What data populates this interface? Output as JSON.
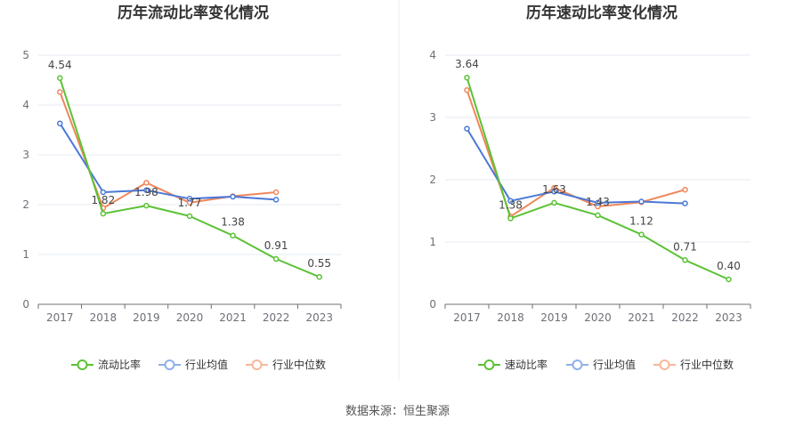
{
  "source": "数据来源：恒生聚源",
  "colors": {
    "company": "#5bc236",
    "avg": "#4b78d8",
    "median": "#f0875a",
    "legend_avg": "#8fb0ea",
    "legend_median": "#f6b79a",
    "grid": "#e6e9f0",
    "axis": "#6e7079",
    "divider": "#eeeeee"
  },
  "chart_data": [
    {
      "type": "line",
      "title": "历年流动比率变化情况",
      "categories": [
        "2017",
        "2018",
        "2019",
        "2020",
        "2021",
        "2022",
        "2023"
      ],
      "yticks": [
        "0",
        "1",
        "2",
        "3",
        "4",
        "5"
      ],
      "ylim": [
        0,
        5
      ],
      "grid": true,
      "legend_position": "bottom",
      "series": [
        {
          "name": "流动比率",
          "values": [
            4.54,
            1.82,
            1.98,
            1.77,
            1.38,
            0.91,
            0.55
          ],
          "labels": [
            "4.54",
            "1.82",
            "1.98",
            "1.77",
            "1.38",
            "0.91",
            "0.55"
          ]
        },
        {
          "name": "行业均值",
          "values": [
            3.63,
            2.25,
            2.29,
            2.12,
            2.16,
            2.1,
            null
          ]
        },
        {
          "name": "行业中位数",
          "values": [
            4.26,
            1.93,
            2.44,
            2.04,
            2.17,
            2.25,
            null
          ]
        }
      ]
    },
    {
      "type": "line",
      "title": "历年速动比率变化情况",
      "categories": [
        "2017",
        "2018",
        "2019",
        "2020",
        "2021",
        "2022",
        "2023"
      ],
      "yticks": [
        "0",
        "1",
        "2",
        "3",
        "4"
      ],
      "ylim": [
        0,
        4
      ],
      "grid": true,
      "legend_position": "bottom",
      "series": [
        {
          "name": "速动比率",
          "values": [
            3.64,
            1.38,
            1.63,
            1.43,
            1.12,
            0.71,
            0.4
          ],
          "labels": [
            "3.64",
            "1.38",
            "1.63",
            "1.43",
            "1.12",
            "0.71",
            "0.40"
          ]
        },
        {
          "name": "行业均值",
          "values": [
            2.82,
            1.66,
            1.81,
            1.63,
            1.65,
            1.62,
            null
          ]
        },
        {
          "name": "行业中位数",
          "values": [
            3.44,
            1.41,
            1.87,
            1.57,
            1.64,
            1.84,
            null
          ]
        }
      ]
    }
  ]
}
